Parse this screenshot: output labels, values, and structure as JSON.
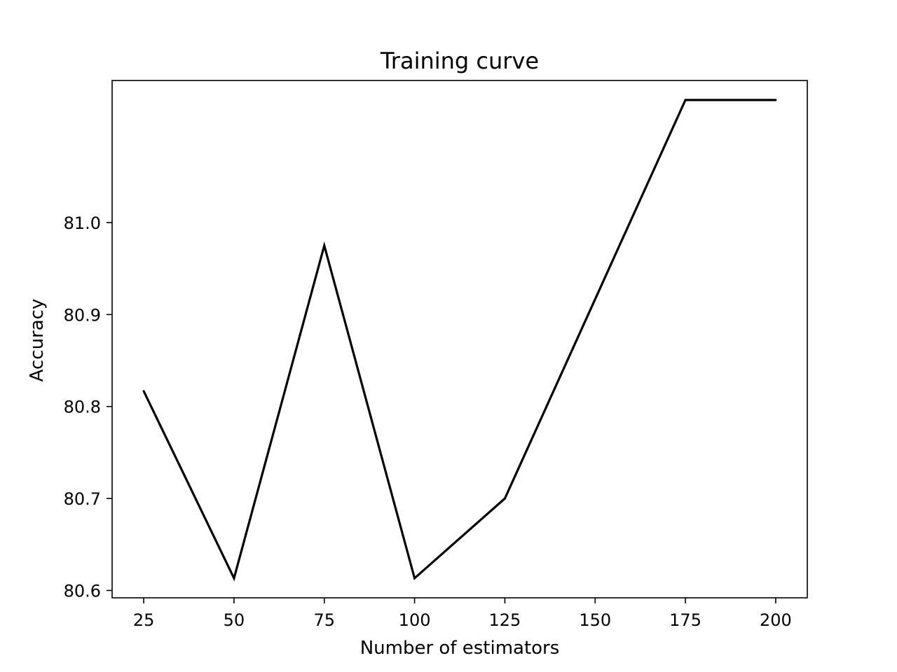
{
  "chart_data": {
    "type": "line",
    "title": "Training curve",
    "xlabel": "Number of estimators",
    "ylabel": "Accuracy",
    "xlim": [
      16.25,
      208.75
    ],
    "ylim": [
      80.592,
      81.1545
    ],
    "x_ticks": [
      25,
      50,
      75,
      100,
      125,
      150,
      175,
      200
    ],
    "y_ticks": [
      80.6,
      80.7,
      80.8,
      80.9,
      81.0
    ],
    "y_tick_labels": [
      "80.6",
      "80.7",
      "80.8",
      "80.9",
      "81.0"
    ],
    "grid": false,
    "legend": "none",
    "series": [
      {
        "color": "#000000",
        "x": [
          25,
          50,
          75,
          100,
          125,
          150,
          175,
          200
        ],
        "y": [
          80.8167,
          80.6133,
          80.975,
          80.6133,
          80.7,
          80.9167,
          81.1333,
          81.1333
        ]
      }
    ]
  }
}
